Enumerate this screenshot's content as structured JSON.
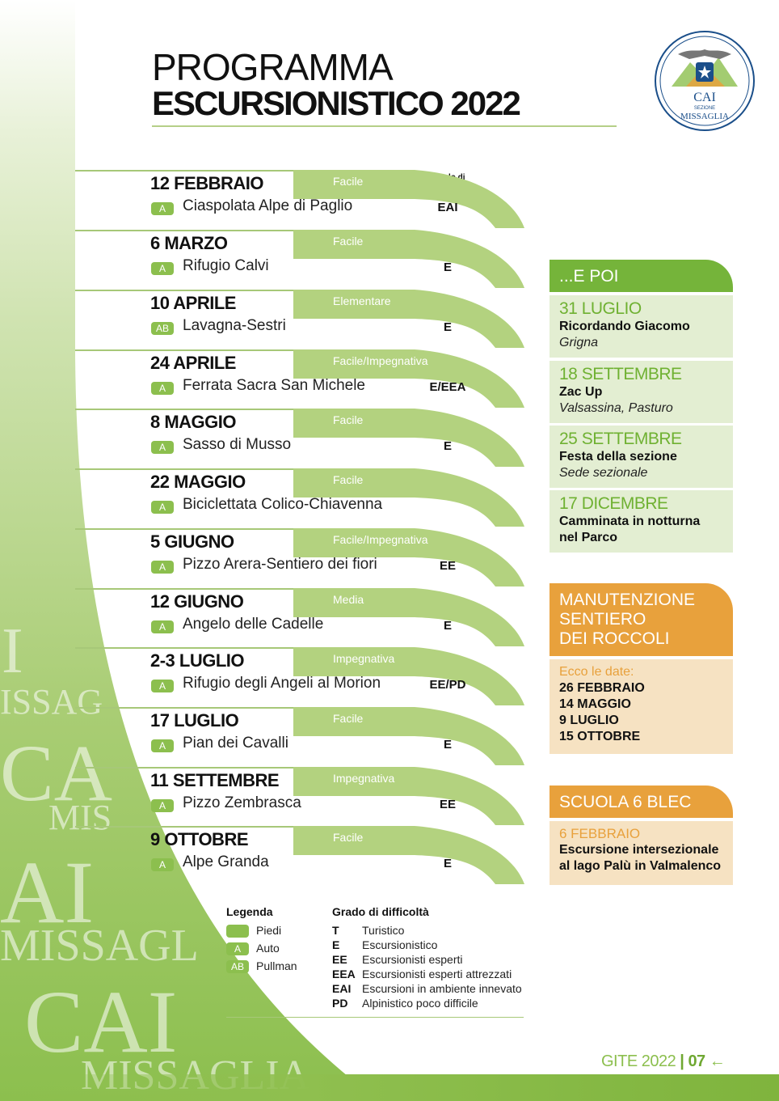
{
  "title": {
    "line1": "PROGRAMMA",
    "line2": "ESCURSIONISTICO 2022"
  },
  "logo": {
    "name": "CAI",
    "section": "SEZIONE",
    "place": "MISSAGLIA"
  },
  "watermark": [
    "I",
    "ISSAG",
    "CA",
    "MIS",
    "AI",
    "MISSAGL",
    "CAI",
    "MISSAGLIA"
  ],
  "grade_header": "Grado di difficoltà",
  "events": [
    {
      "date": "12 FEBBRAIO",
      "difficulty": "Facile",
      "transport": "A",
      "name": "Ciaspolata Alpe di Paglio",
      "grade": "EAI"
    },
    {
      "date": "6 MARZO",
      "difficulty": "Facile",
      "transport": "A",
      "name": "Rifugio Calvi",
      "grade": "E"
    },
    {
      "date": "10 APRILE",
      "difficulty": "Elementare",
      "transport": "AB",
      "name": "Lavagna-Sestri",
      "grade": "E"
    },
    {
      "date": "24 APRILE",
      "difficulty": "Facile/Impegnativa",
      "transport": "A",
      "name": "Ferrata Sacra San Michele",
      "grade": "E/EEA"
    },
    {
      "date": "8 MAGGIO",
      "difficulty": "Facile",
      "transport": "A",
      "name": "Sasso di Musso",
      "grade": "E"
    },
    {
      "date": "22 MAGGIO",
      "difficulty": "Facile",
      "transport": "A",
      "name": "Biciclettata Colico-Chiavenna",
      "grade": ""
    },
    {
      "date": "5 GIUGNO",
      "difficulty": "Facile/Impegnativa",
      "transport": "A",
      "name": "Pizzo Arera-Sentiero dei fiori",
      "grade": "EE"
    },
    {
      "date": "12 GIUGNO",
      "difficulty": "Media",
      "transport": "A",
      "name": "Angelo delle Cadelle",
      "grade": "E"
    },
    {
      "date": "2-3 LUGLIO",
      "difficulty": "Impegnativa",
      "transport": "A",
      "name": "Rifugio degli Angeli al Morion",
      "grade": "EE/PD"
    },
    {
      "date": "17 LUGLIO",
      "difficulty": "Facile",
      "transport": "A",
      "name": "Pian dei Cavalli",
      "grade": "E"
    },
    {
      "date": "11 SETTEMBRE",
      "difficulty": "Impegnativa",
      "transport": "A",
      "name": "Pizzo Zembrasca",
      "grade": "EE"
    },
    {
      "date": "9 OTTOBRE",
      "difficulty": "Facile",
      "transport": "A",
      "name": "Alpe Granda",
      "grade": "E"
    }
  ],
  "e_poi": {
    "heading": "...E POI",
    "items": [
      {
        "date": "31 LUGLIO",
        "title": "Ricordando Giacomo",
        "subtitle": "Grigna"
      },
      {
        "date": "18 SETTEMBRE",
        "title": "Zac Up",
        "subtitle": "Valsassina, Pasturo"
      },
      {
        "date": "25 SETTEMBRE",
        "title": "Festa della sezione",
        "subtitle": "Sede sezionale"
      },
      {
        "date": "17 DICEMBRE",
        "title": "Camminata in notturna",
        "title2": "nel Parco"
      }
    ]
  },
  "manutenzione": {
    "heading": [
      "MANUTENZIONE",
      "SENTIERO",
      "DEI ROCCOLI"
    ],
    "intro": "Ecco le date:",
    "dates": [
      "26 FEBBRAIO",
      "14 MAGGIO",
      "9 LUGLIO",
      "15 OTTOBRE"
    ]
  },
  "scuola": {
    "heading": "SCUOLA 6 BLEC",
    "date": "6 FEBBRAIO",
    "lines": [
      "Escursione intersezionale",
      "al lago Palù in Valmalenco"
    ]
  },
  "legenda": {
    "title": "Legenda",
    "items": [
      {
        "badge": "",
        "label": "Piedi"
      },
      {
        "badge": "A",
        "label": "Auto"
      },
      {
        "badge": "AB",
        "label": "Pullman"
      }
    ]
  },
  "grado": {
    "title": "Grado di difficoltà",
    "items": [
      {
        "code": "T",
        "desc": "Turistico"
      },
      {
        "code": "E",
        "desc": "Escursionistico"
      },
      {
        "code": "EE",
        "desc": "Escursionisti esperti"
      },
      {
        "code": "EEA",
        "desc": "Escursionisti esperti attrezzati"
      },
      {
        "code": "EAI",
        "desc": "Escursioni in ambiente innevato"
      },
      {
        "code": "PD",
        "desc": "Alpinistico poco difficile"
      }
    ]
  },
  "footer": {
    "label": "GITE 2022",
    "page": "07",
    "arrow": "←"
  },
  "colors": {
    "green": "#8cbf4e",
    "dark_green": "#75b43a",
    "light_green": "#e3eed2",
    "orange": "#e8a13c",
    "peach": "#f6e2c2"
  }
}
